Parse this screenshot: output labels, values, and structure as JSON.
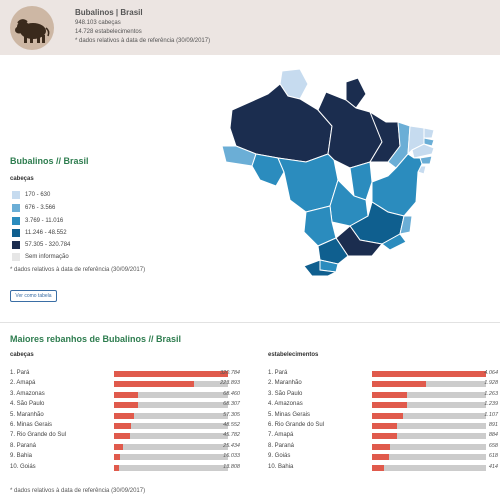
{
  "header": {
    "title": "Bubalinos | Brasil",
    "heads": "948.103 cabeças",
    "establishments": "14.728 estabelecimentos",
    "reference_note": "* dados relativos à data de referência (30/09/2017)"
  },
  "map_section": {
    "title": "Bubalinos // Brasil",
    "legend_title": "cabeças",
    "legend": [
      {
        "label": "170 - 630",
        "color": "#c6dbef"
      },
      {
        "label": "676 - 3.566",
        "color": "#6baed6"
      },
      {
        "label": "3.769 - 11.016",
        "color": "#2b8cbe"
      },
      {
        "label": "11.246 - 48.552",
        "color": "#0f5f8f"
      },
      {
        "label": "57.305 - 320.784",
        "color": "#1b2d4f"
      },
      {
        "label": "Sem informação",
        "color": "#e6e6e6"
      }
    ],
    "note": "* dados relativos à data de referência (30/09/2017)",
    "table_button": "Ver como tabela"
  },
  "ranking": {
    "title": "Maiores rebanhos de Bubalinos // Brasil",
    "note": "* dados relativos à data de referência (30/09/2017)",
    "bar_color": "#e05a4c",
    "columns": [
      {
        "header": "cabeças",
        "rows": [
          {
            "label": "1. Pará",
            "value": "320.784",
            "n": 320784
          },
          {
            "label": "2. Amapá",
            "value": "223.893",
            "n": 223893
          },
          {
            "label": "3. Amazonas",
            "value": "68.460",
            "n": 68460
          },
          {
            "label": "4. São Paulo",
            "value": "68.307",
            "n": 68307
          },
          {
            "label": "5. Maranhão",
            "value": "57.305",
            "n": 57305
          },
          {
            "label": "6. Minas Gerais",
            "value": "48.552",
            "n": 48552
          },
          {
            "label": "7. Rio Grande do Sul",
            "value": "45.782",
            "n": 45782
          },
          {
            "label": "8. Paraná",
            "value": "25.434",
            "n": 25434
          },
          {
            "label": "9. Bahia",
            "value": "16.033",
            "n": 16033
          },
          {
            "label": "10. Goiás",
            "value": "13.808",
            "n": 13808
          }
        ]
      },
      {
        "header": "estabelecimentos",
        "rows": [
          {
            "label": "1. Pará",
            "value": "4.064",
            "n": 4064
          },
          {
            "label": "2. Maranhão",
            "value": "1.928",
            "n": 1928
          },
          {
            "label": "3. São Paulo",
            "value": "1.263",
            "n": 1263
          },
          {
            "label": "4. Amazonas",
            "value": "1.239",
            "n": 1239
          },
          {
            "label": "5. Minas Gerais",
            "value": "1.107",
            "n": 1107
          },
          {
            "label": "6. Rio Grande do Sul",
            "value": "891",
            "n": 891
          },
          {
            "label": "7. Amapá",
            "value": "884",
            "n": 884
          },
          {
            "label": "8. Paraná",
            "value": "658",
            "n": 658
          },
          {
            "label": "9. Goiás",
            "value": "618",
            "n": 618
          },
          {
            "label": "10. Bahia",
            "value": "414",
            "n": 414
          }
        ]
      }
    ]
  }
}
